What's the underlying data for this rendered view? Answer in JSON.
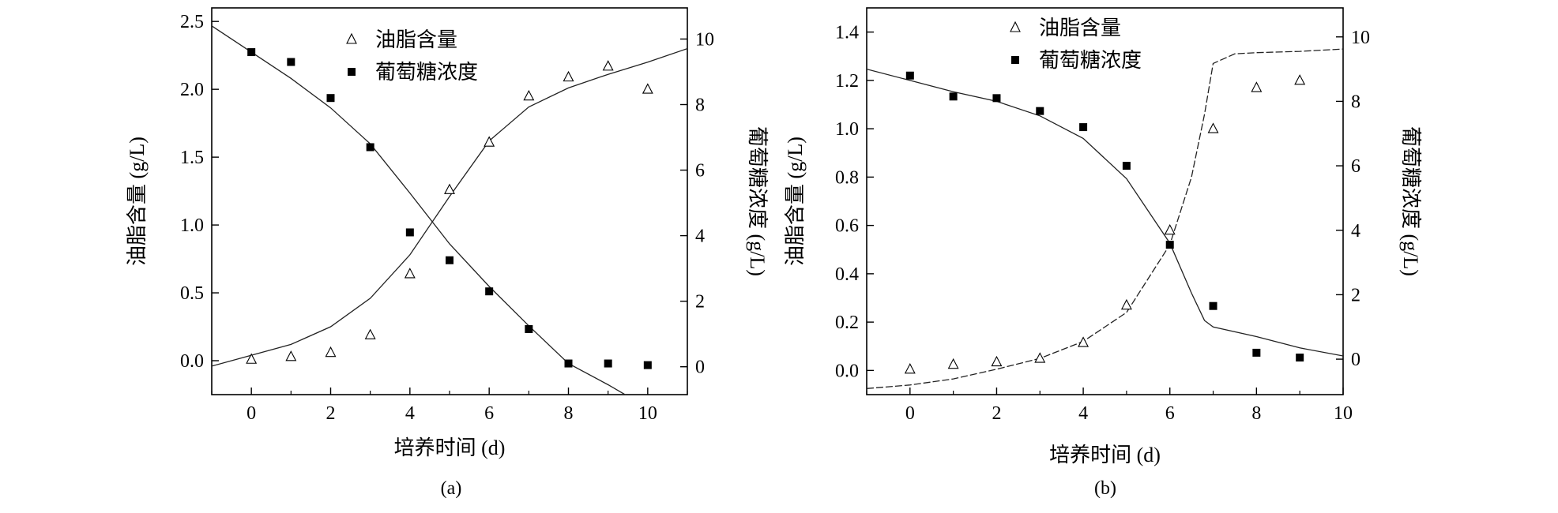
{
  "chart_data": [
    {
      "type": "scatter",
      "panel_label": "(a)",
      "xlabel": "培养时间 (d)",
      "ylabel": "油脂含量 (g/L)",
      "y2label": "葡萄糖浓度 (g/L)",
      "xlim": [
        -1,
        11
      ],
      "ylim": [
        -0.25,
        2.6
      ],
      "y2lim": [
        -0.85,
        10.95
      ],
      "x_ticks": [
        0,
        2,
        4,
        6,
        8,
        10
      ],
      "y_ticks": [
        "0.0",
        "0.5",
        "1.0",
        "1.5",
        "2.0",
        "2.5"
      ],
      "y2_ticks": [
        "0",
        "2",
        "4",
        "6",
        "8",
        "10"
      ],
      "legend": {
        "placement": "top-center",
        "entries": [
          "油脂含量",
          "葡萄糖浓度"
        ]
      },
      "series": [
        {
          "name": "油脂含量",
          "axis": "left",
          "marker": "open-triangle",
          "x": [
            0,
            1,
            2,
            3,
            4,
            5,
            6,
            7,
            8,
            9,
            10
          ],
          "y": [
            0.01,
            0.03,
            0.06,
            0.19,
            0.64,
            1.26,
            1.61,
            1.95,
            2.09,
            2.17,
            2.0
          ]
        },
        {
          "name": "葡萄糖浓度",
          "axis": "right",
          "marker": "filled-square",
          "x": [
            0,
            1,
            2,
            3,
            4,
            5,
            6,
            7,
            8,
            9,
            10
          ],
          "y": [
            9.6,
            9.3,
            8.2,
            6.7,
            4.1,
            3.25,
            2.3,
            1.15,
            0.1,
            0.1,
            0.05
          ]
        }
      ],
      "fit_curves": [
        {
          "axis": "left",
          "x": [
            -1,
            0,
            1,
            2,
            3,
            4,
            5,
            6,
            7,
            8,
            9,
            10,
            11
          ],
          "y": [
            -0.04,
            0.04,
            0.12,
            0.25,
            0.46,
            0.78,
            1.21,
            1.62,
            1.87,
            2.01,
            2.11,
            2.2,
            2.3
          ]
        },
        {
          "axis": "right",
          "x": [
            -1,
            0,
            1,
            2,
            3,
            4,
            5,
            6,
            7,
            8,
            9,
            9.5
          ],
          "y": [
            10.4,
            9.6,
            8.8,
            7.9,
            6.8,
            5.3,
            3.75,
            2.45,
            1.25,
            0.1,
            -0.55,
            -0.9
          ]
        }
      ]
    },
    {
      "type": "scatter",
      "panel_label": "(b)",
      "xlabel": "培养时间 (d)",
      "ylabel": "油脂含量 (g/L)",
      "y2label": "葡萄糖浓度 (g/L)",
      "xlim": [
        -1,
        10
      ],
      "ylim": [
        -0.1,
        1.5
      ],
      "y2lim": [
        -1.1,
        10.9
      ],
      "x_ticks": [
        0,
        2,
        4,
        6,
        8,
        10
      ],
      "y_ticks": [
        "0.0",
        "0.2",
        "0.4",
        "0.6",
        "0.8",
        "1.0",
        "1.2",
        "1.4"
      ],
      "y2_ticks": [
        "0",
        "2",
        "4",
        "6",
        "8",
        "10"
      ],
      "legend": {
        "placement": "top-center",
        "entries": [
          "油脂含量",
          "葡萄糖浓度"
        ]
      },
      "series": [
        {
          "name": "油脂含量",
          "axis": "left",
          "marker": "open-triangle",
          "x": [
            0,
            1,
            2,
            3,
            4,
            5,
            6,
            7,
            8,
            9
          ],
          "y": [
            0.005,
            0.025,
            0.035,
            0.05,
            0.115,
            0.27,
            0.58,
            1.0,
            1.17,
            1.2
          ]
        },
        {
          "name": "葡萄糖浓度",
          "axis": "right",
          "marker": "filled-square",
          "x": [
            0,
            1,
            2,
            3,
            4,
            5,
            6,
            7,
            8,
            9
          ],
          "y": [
            8.8,
            8.15,
            8.1,
            7.7,
            7.2,
            6.0,
            3.55,
            1.65,
            0.2,
            0.05
          ]
        }
      ],
      "fit_curves": [
        {
          "axis": "left",
          "x": [
            -1,
            0,
            1,
            2,
            3,
            4,
            5,
            6,
            6.5,
            6.8,
            7,
            7.5,
            8,
            9,
            10
          ],
          "y": [
            -0.075,
            -0.06,
            -0.035,
            0.005,
            0.05,
            0.12,
            0.24,
            0.52,
            0.8,
            1.06,
            1.27,
            1.31,
            1.315,
            1.32,
            1.33
          ]
        },
        {
          "axis": "right",
          "x": [
            -1,
            0,
            1,
            2,
            3,
            4,
            5,
            6,
            6.5,
            6.8,
            7,
            8,
            9,
            10
          ],
          "y": [
            9.0,
            8.65,
            8.3,
            8.0,
            7.55,
            6.85,
            5.6,
            3.6,
            2.05,
            1.2,
            1.0,
            0.7,
            0.35,
            0.1
          ]
        }
      ]
    }
  ]
}
